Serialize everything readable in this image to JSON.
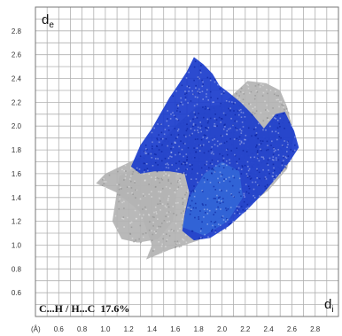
{
  "chart_data": {
    "type": "scatter",
    "title": "",
    "xlabel_symbol": "d",
    "xlabel_subscript": "i",
    "ylabel_symbol": "d",
    "ylabel_subscript": "e",
    "x_unit_label": "(Å)",
    "annotation": "C...H / H...C  17.6%",
    "xlim": [
      0.4,
      3.0
    ],
    "ylim": [
      0.4,
      3.0
    ],
    "x_ticks": [
      "0.6",
      "0.8",
      "1.0",
      "1.2",
      "1.4",
      "1.6",
      "1.8",
      "2.0",
      "2.2",
      "2.4",
      "2.6",
      "2.8"
    ],
    "y_ticks": [
      "0.6",
      "0.8",
      "1.0",
      "1.2",
      "1.4",
      "1.6",
      "1.8",
      "2.0",
      "2.2",
      "2.4",
      "2.6",
      "2.8"
    ],
    "grid": true,
    "series": [
      {
        "role": "full fingerprint (background)",
        "color": "#b3b3b3",
        "regions": [
          [
            [
              1.0,
              1.6
            ],
            [
              1.3,
              1.74
            ],
            [
              1.45,
              1.83
            ],
            [
              1.62,
              2.02
            ],
            [
              1.78,
              2.16
            ],
            [
              2.0,
              2.18
            ],
            [
              2.22,
              2.38
            ],
            [
              2.38,
              2.36
            ],
            [
              2.5,
              2.3
            ],
            [
              2.56,
              2.16
            ],
            [
              2.62,
              1.92
            ],
            [
              2.56,
              1.64
            ],
            [
              2.4,
              1.46
            ],
            [
              2.1,
              1.24
            ],
            [
              1.8,
              1.04
            ],
            [
              1.55,
              0.96
            ],
            [
              1.35,
              0.88
            ],
            [
              1.4,
              1.0
            ],
            [
              1.3,
              1.28
            ],
            [
              1.1,
              1.44
            ],
            [
              0.92,
              1.52
            ]
          ],
          [
            [
              1.06,
              1.2
            ],
            [
              1.12,
              1.58
            ],
            [
              1.3,
              1.66
            ],
            [
              1.55,
              1.72
            ],
            [
              1.62,
              1.5
            ],
            [
              1.58,
              1.2
            ],
            [
              1.45,
              1.05
            ],
            [
              1.28,
              1.02
            ],
            [
              1.14,
              1.05
            ]
          ]
        ]
      },
      {
        "role": "C...H / H...C contacts",
        "color": "#1a3ccc",
        "highlight_color": "#3a7be0",
        "regions": [
          [
            [
              1.22,
              1.66
            ],
            [
              1.3,
              1.84
            ],
            [
              1.4,
              1.98
            ],
            [
              1.48,
              2.12
            ],
            [
              1.55,
              2.24
            ],
            [
              1.62,
              2.34
            ],
            [
              1.7,
              2.46
            ],
            [
              1.76,
              2.58
            ],
            [
              1.84,
              2.52
            ],
            [
              1.92,
              2.44
            ],
            [
              1.98,
              2.34
            ],
            [
              2.06,
              2.28
            ],
            [
              2.16,
              2.2
            ],
            [
              2.26,
              2.1
            ],
            [
              2.36,
              1.98
            ],
            [
              2.46,
              2.1
            ],
            [
              2.54,
              2.12
            ],
            [
              2.62,
              1.96
            ],
            [
              2.66,
              1.82
            ],
            [
              2.58,
              1.7
            ],
            [
              2.48,
              1.58
            ],
            [
              2.36,
              1.44
            ],
            [
              2.22,
              1.3
            ],
            [
              2.06,
              1.16
            ],
            [
              1.9,
              1.06
            ],
            [
              1.76,
              1.04
            ],
            [
              1.66,
              1.12
            ],
            [
              1.68,
              1.26
            ],
            [
              1.72,
              1.44
            ],
            [
              1.68,
              1.6
            ],
            [
              1.55,
              1.62
            ],
            [
              1.42,
              1.62
            ],
            [
              1.3,
              1.6
            ]
          ],
          [
            [
              1.66,
              1.15
            ],
            [
              1.72,
              1.4
            ],
            [
              1.85,
              1.6
            ],
            [
              2.0,
              1.7
            ],
            [
              2.15,
              1.62
            ],
            [
              2.18,
              1.4
            ],
            [
              2.05,
              1.2
            ],
            [
              1.85,
              1.08
            ]
          ]
        ]
      }
    ]
  }
}
